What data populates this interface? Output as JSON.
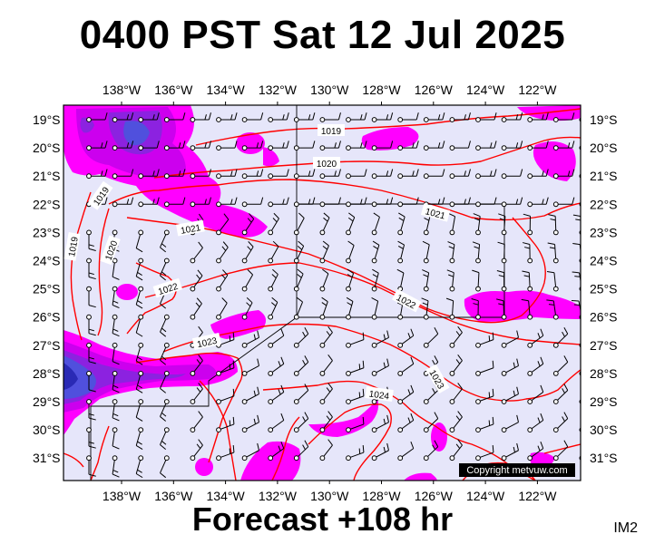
{
  "title": "0400 PST Sat 12 Jul 2025",
  "footer": "Forecast +108 hr",
  "image_code": "IM2",
  "copyright": "Copyright metvuw.com",
  "map": {
    "lon_labels": [
      "138°W",
      "136°W",
      "134°W",
      "132°W",
      "130°W",
      "128°W",
      "126°W",
      "124°W",
      "122°W"
    ],
    "lat_labels": [
      "19°S",
      "20°S",
      "21°S",
      "22°S",
      "23°S",
      "24°S",
      "25°S",
      "26°S",
      "27°S",
      "28°S",
      "29°S",
      "30°S",
      "31°S"
    ],
    "isobar_labels": [
      "1019",
      "1020",
      "1021",
      "1022",
      "1023",
      "1024",
      "1019",
      "1020",
      "1021",
      "1022",
      "1023"
    ],
    "colors": {
      "ocean": "#e6e6fa",
      "isobar": "#ff0000",
      "precip_light": "#ff00ff",
      "precip_mid": "#b400e6",
      "precip_heavy": "#5555dd",
      "precip_core": "#2222bb",
      "frame": "#000000"
    }
  }
}
